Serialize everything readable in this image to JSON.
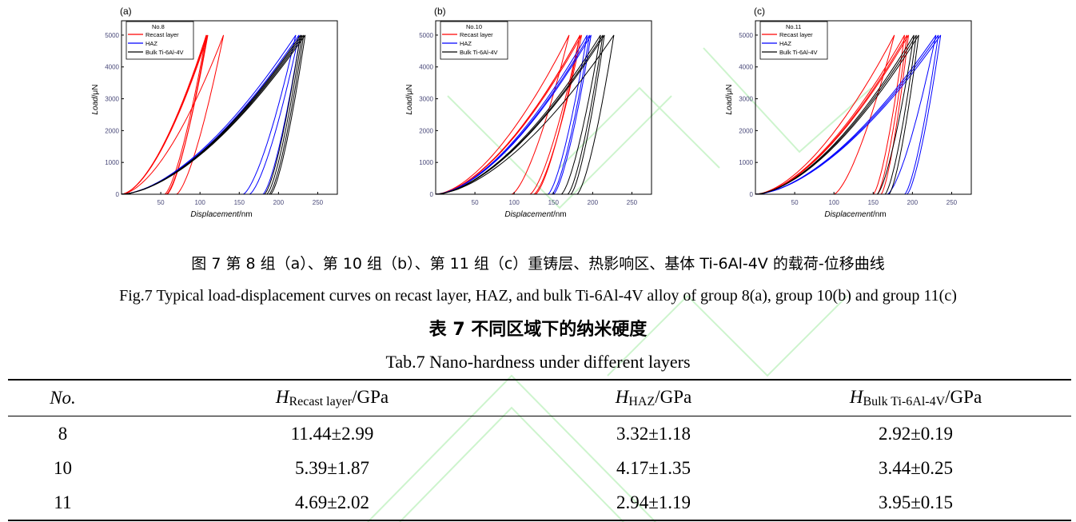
{
  "charts_common": {
    "xlabel_italic": "Displacement",
    "xlabel_unit": "/nm",
    "ylabel_italic": "Load",
    "ylabel_unit": "/μN",
    "xlim": [
      0,
      275
    ],
    "ylim": [
      0,
      5450
    ],
    "xticks": [
      50,
      100,
      150,
      200,
      250
    ],
    "yticks": [
      0,
      1000,
      2000,
      3000,
      4000,
      5000
    ],
    "series_names": [
      "Recast layer",
      "HAZ",
      "Bulk Ti-6Al-4V"
    ],
    "series_colors": [
      "#ff0000",
      "#0000ff",
      "#000000"
    ]
  },
  "chart_data": [
    {
      "type": "line",
      "panel": "(a)",
      "legend_title": "No.8",
      "legend": "top-left",
      "note": "loading-unloading curves given as max displacement (nm) at 5000 μN and final displacement (nm) at 0 load",
      "series": [
        {
          "name": "Recast layer",
          "curves": [
            [
              108,
              55
            ],
            [
              110,
              57
            ],
            [
              109,
              58
            ],
            [
              130,
              70
            ]
          ]
        },
        {
          "name": "HAZ",
          "curves": [
            [
              222,
              155
            ],
            [
              226,
              163
            ],
            [
              228,
              180
            ]
          ]
        },
        {
          "name": "Bulk Ti-6Al-4V",
          "curves": [
            [
              228,
              182
            ],
            [
              230,
              185
            ],
            [
              232,
              188
            ],
            [
              234,
              190
            ]
          ]
        }
      ]
    },
    {
      "type": "line",
      "panel": "(b)",
      "legend_title": "No.10",
      "legend": "top-left",
      "series": [
        {
          "name": "Recast layer",
          "curves": [
            [
              170,
              97
            ],
            [
              184,
              120
            ],
            [
              186,
              125
            ],
            [
              184,
              127
            ]
          ]
        },
        {
          "name": "HAZ",
          "curves": [
            [
              193,
              143
            ],
            [
              196,
              148
            ],
            [
              198,
              150
            ]
          ]
        },
        {
          "name": "Bulk Ti-6Al-4V",
          "curves": [
            [
              210,
              160
            ],
            [
              213,
              168
            ],
            [
              215,
              172
            ],
            [
              227,
              180
            ]
          ]
        }
      ]
    },
    {
      "type": "line",
      "panel": "(c)",
      "legend_title": "No.11",
      "legend": "top-left",
      "series": [
        {
          "name": "Recast layer",
          "curves": [
            [
              177,
              100
            ],
            [
              190,
              150
            ],
            [
              193,
              155
            ],
            [
              195,
              160
            ]
          ]
        },
        {
          "name": "HAZ",
          "curves": [
            [
              230,
              168
            ],
            [
              233,
              190
            ],
            [
              236,
              193
            ]
          ]
        },
        {
          "name": "Bulk Ti-6Al-4V",
          "curves": [
            [
              202,
              155
            ],
            [
              205,
              165
            ],
            [
              208,
              170
            ]
          ]
        }
      ]
    }
  ],
  "captions": {
    "fig_cn": "图 7  第 8 组（a）、第 10 组（b）、第 11 组（c）重铸层、热影响区、基体 Ti-6Al-4V 的载荷-位移曲线",
    "fig_en": "Fig.7 Typical load-displacement curves on recast layer, HAZ, and bulk Ti-6Al-4V alloy of group 8(a), group 10(b) and group 11(c)",
    "tab_cn": "表 7  不同区域下的纳米硬度",
    "tab_en": "Tab.7 Nano-hardness under different layers"
  },
  "table": {
    "headers": [
      {
        "main": "No.",
        "sub": "",
        "unit": ""
      },
      {
        "main": "H",
        "sub": "Recast layer",
        "unit": "/GPa"
      },
      {
        "main": "H",
        "sub": "HAZ",
        "unit": "/GPa"
      },
      {
        "main": "H",
        "sub": "Bulk Ti-6Al-4V",
        "unit": "/GPa"
      }
    ],
    "rows": [
      [
        "8",
        "11.44±2.99",
        "3.32±1.18",
        "2.92±0.19"
      ],
      [
        "10",
        "5.39±1.87",
        "4.17±1.35",
        "3.44±0.25"
      ],
      [
        "11",
        "4.69±2.02",
        "2.94±1.19",
        "3.95±0.15"
      ]
    ]
  }
}
